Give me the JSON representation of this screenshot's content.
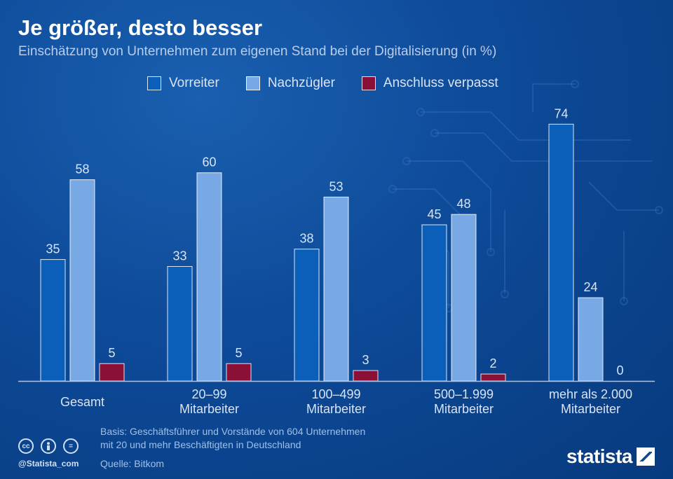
{
  "title": "Je größer, desto besser",
  "subtitle": "Einschätzung von Unternehmen zum eigenen Stand bei der Digitalisierung (in %)",
  "chart_data": {
    "type": "bar",
    "title": "Je größer, desto besser",
    "subtitle": "Einschätzung von Unternehmen zum eigenen Stand bei der Digitalisierung (in %)",
    "xlabel": "",
    "ylabel": "",
    "ylim": [
      0,
      80
    ],
    "grid": false,
    "legend_position": "top",
    "categories": [
      [
        "Gesamt"
      ],
      [
        "20–99",
        "Mitarbeiter"
      ],
      [
        "100–499",
        "Mitarbeiter"
      ],
      [
        "500–1.999",
        "Mitarbeiter"
      ],
      [
        "mehr als 2.000",
        "Mitarbeiter"
      ]
    ],
    "series": [
      {
        "name": "Vorreiter",
        "color": "#0b5fb8",
        "values": [
          35,
          33,
          38,
          45,
          74
        ]
      },
      {
        "name": "Nachzügler",
        "color": "#79a9e4",
        "values": [
          58,
          60,
          53,
          48,
          24
        ]
      },
      {
        "name": "Anschluss verpasst",
        "color": "#8a1038",
        "values": [
          5,
          5,
          3,
          2,
          0
        ]
      }
    ]
  },
  "footer": {
    "basis_line1": "Basis: Geschäftsführer und Vorstände von 604 Unternehmen",
    "basis_line2": "mit 20 und mehr Beschäftigten in Deutschland",
    "source": "Quelle: Bitkom",
    "handle": "@Statista_com",
    "brand": "statista"
  },
  "icons": {
    "cc": "cc-icon",
    "by": "person-icon",
    "nd": "equals-icon"
  }
}
